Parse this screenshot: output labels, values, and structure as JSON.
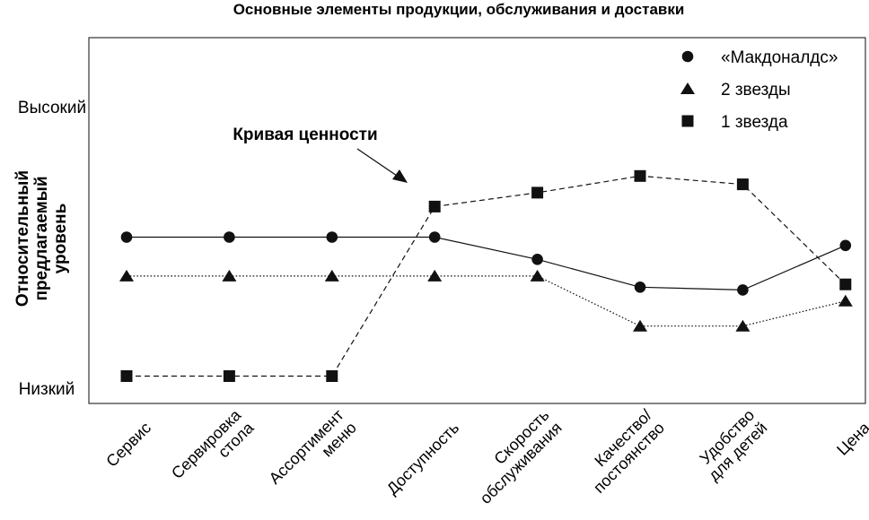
{
  "chart_data": {
    "type": "line",
    "title": "Основные элементы продукции, обслуживания и доставки",
    "ylabel": [
      "Относительный",
      "предлагаемый",
      "уровень"
    ],
    "y_levels": {
      "high": "Высокий",
      "low": "Низкий"
    },
    "ylim": [
      0,
      100
    ],
    "categories": [
      [
        "Сервис"
      ],
      [
        "Сервировка",
        "стола"
      ],
      [
        "Ассортимент",
        "меню"
      ],
      [
        "Доступность"
      ],
      [
        "Скорость",
        "обслуживания"
      ],
      [
        "Качество/",
        "постоянство"
      ],
      [
        "Удобство",
        "для детей"
      ],
      [
        "Цена"
      ]
    ],
    "series": [
      {
        "name": "«Макдоналдс»",
        "marker": "circle",
        "line": "solid",
        "values": [
          55,
          55,
          55,
          55,
          47,
          37,
          36,
          52
        ]
      },
      {
        "name": "2 звезды",
        "marker": "triangle",
        "line": "dotted",
        "values": [
          41,
          41,
          41,
          41,
          41,
          23,
          23,
          32
        ]
      },
      {
        "name": "1 звезда",
        "marker": "square",
        "line": "dashed",
        "values": [
          5,
          5,
          5,
          66,
          71,
          77,
          74,
          38
        ]
      }
    ],
    "legend_position": "top-right",
    "annotation": {
      "text": "Кривая ценности"
    },
    "grid": false,
    "colors": {
      "ink": "#111111",
      "frame": "#333333"
    }
  }
}
